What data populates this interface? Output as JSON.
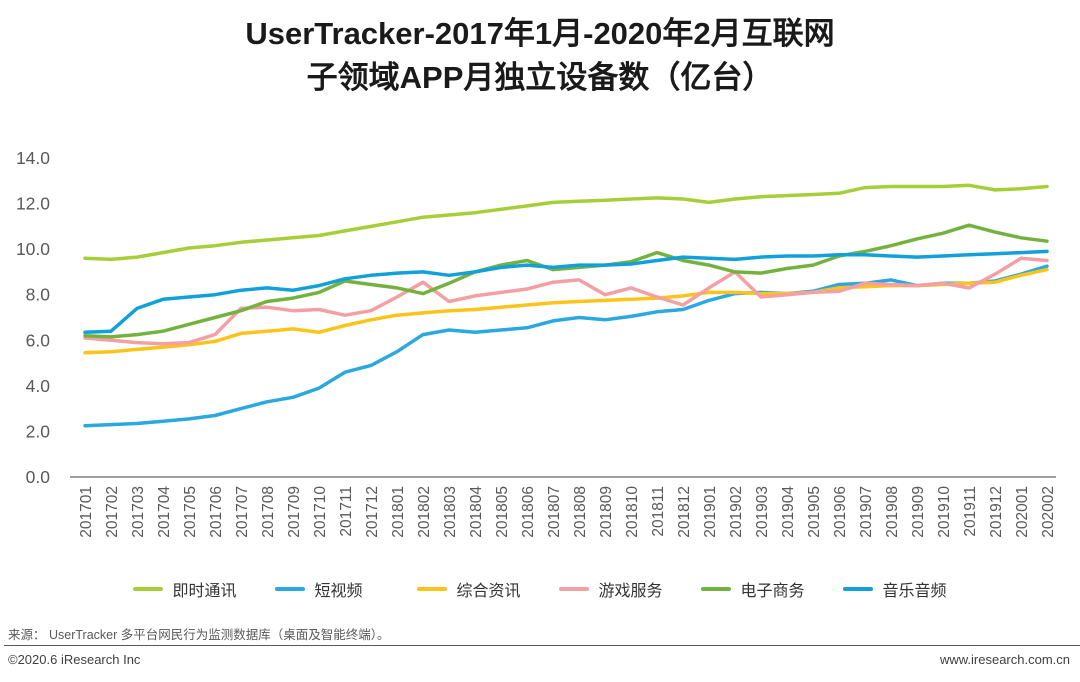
{
  "title": {
    "line1": "UserTracker-2017年1月-2020年2月互联网",
    "line2": "子领域APP月独立设备数（亿台）"
  },
  "chart_data": {
    "type": "line",
    "title": "UserTracker-2017年1月-2020年2月互联网子领域APP月独立设备数（亿台）",
    "xlabel": "",
    "ylabel": "",
    "ylim": [
      0,
      14
    ],
    "ytick_step": 2,
    "ytick_labels": [
      "0.0",
      "2.0",
      "4.0",
      "6.0",
      "8.0",
      "10.0",
      "12.0",
      "14.0"
    ],
    "grid": false,
    "legend_position": "bottom",
    "x": [
      "201701",
      "201702",
      "201703",
      "201704",
      "201705",
      "201706",
      "201707",
      "201708",
      "201709",
      "201710",
      "201711",
      "201712",
      "201801",
      "201802",
      "201803",
      "201804",
      "201805",
      "201806",
      "201807",
      "201808",
      "201809",
      "201810",
      "201811",
      "201812",
      "201901",
      "201902",
      "201903",
      "201904",
      "201905",
      "201906",
      "201907",
      "201908",
      "201909",
      "201910",
      "201911",
      "201912",
      "202001",
      "202002"
    ],
    "series": [
      {
        "name": "即时通讯",
        "color": "#A6CE39",
        "values": [
          9.6,
          9.55,
          9.65,
          9.85,
          10.05,
          10.15,
          10.3,
          10.4,
          10.5,
          10.6,
          10.8,
          11.0,
          11.2,
          11.4,
          11.5,
          11.6,
          11.75,
          11.9,
          12.05,
          12.1,
          12.15,
          12.2,
          12.25,
          12.2,
          12.05,
          12.2,
          12.3,
          12.35,
          12.4,
          12.45,
          12.7,
          12.75,
          12.75,
          12.75,
          12.8,
          12.6,
          12.65,
          12.75
        ]
      },
      {
        "name": "短视频",
        "color": "#2CA8E0",
        "values": [
          2.25,
          2.3,
          2.35,
          2.45,
          2.55,
          2.7,
          3.0,
          3.3,
          3.5,
          3.9,
          4.6,
          4.9,
          5.5,
          6.25,
          6.45,
          6.35,
          6.45,
          6.55,
          6.85,
          7.0,
          6.9,
          7.05,
          7.25,
          7.35,
          7.75,
          8.05,
          8.1,
          8.05,
          8.15,
          8.45,
          8.5,
          8.65,
          8.4,
          8.5,
          8.5,
          8.6,
          8.9,
          9.25
        ]
      },
      {
        "name": "综合资讯",
        "color": "#FCC41A",
        "values": [
          5.45,
          5.5,
          5.6,
          5.7,
          5.8,
          5.95,
          6.3,
          6.4,
          6.5,
          6.35,
          6.65,
          6.9,
          7.1,
          7.2,
          7.3,
          7.35,
          7.45,
          7.55,
          7.65,
          7.7,
          7.75,
          7.8,
          7.85,
          7.95,
          8.1,
          8.1,
          8.05,
          8.05,
          8.1,
          8.3,
          8.35,
          8.4,
          8.4,
          8.45,
          8.5,
          8.55,
          8.85,
          9.1
        ]
      },
      {
        "name": "游戏服务",
        "color": "#F49FA3",
        "values": [
          6.1,
          6.0,
          5.9,
          5.85,
          5.9,
          6.25,
          7.4,
          7.45,
          7.3,
          7.35,
          7.1,
          7.3,
          7.9,
          8.55,
          7.7,
          7.95,
          8.1,
          8.25,
          8.55,
          8.65,
          8.0,
          8.3,
          7.9,
          7.55,
          8.3,
          9.0,
          7.9,
          8.0,
          8.1,
          8.15,
          8.5,
          8.45,
          8.4,
          8.5,
          8.3,
          8.9,
          9.6,
          9.5
        ]
      },
      {
        "name": "电子商务",
        "color": "#74B23F",
        "values": [
          6.2,
          6.15,
          6.25,
          6.4,
          6.7,
          7.0,
          7.3,
          7.7,
          7.85,
          8.1,
          8.6,
          8.45,
          8.3,
          8.05,
          8.5,
          9.0,
          9.3,
          9.5,
          9.1,
          9.2,
          9.3,
          9.45,
          9.85,
          9.5,
          9.3,
          9.0,
          8.95,
          9.15,
          9.3,
          9.7,
          9.9,
          10.15,
          10.45,
          10.7,
          11.05,
          10.75,
          10.5,
          10.35
        ]
      },
      {
        "name": "音乐音频",
        "color": "#12A0DB",
        "values": [
          6.35,
          6.4,
          7.4,
          7.8,
          7.9,
          8.0,
          8.2,
          8.3,
          8.2,
          8.4,
          8.7,
          8.85,
          8.95,
          9.0,
          8.85,
          9.0,
          9.2,
          9.3,
          9.2,
          9.3,
          9.3,
          9.35,
          9.5,
          9.65,
          9.6,
          9.55,
          9.65,
          9.7,
          9.7,
          9.75,
          9.75,
          9.7,
          9.65,
          9.7,
          9.75,
          9.8,
          9.85,
          9.9
        ]
      }
    ]
  },
  "footer": {
    "source": "来源： UserTracker 多平台网民行为监测数据库（桌面及智能终端）。",
    "copyright": "©2020.6 iResearch Inc",
    "website": "www.iresearch.com.cn"
  }
}
